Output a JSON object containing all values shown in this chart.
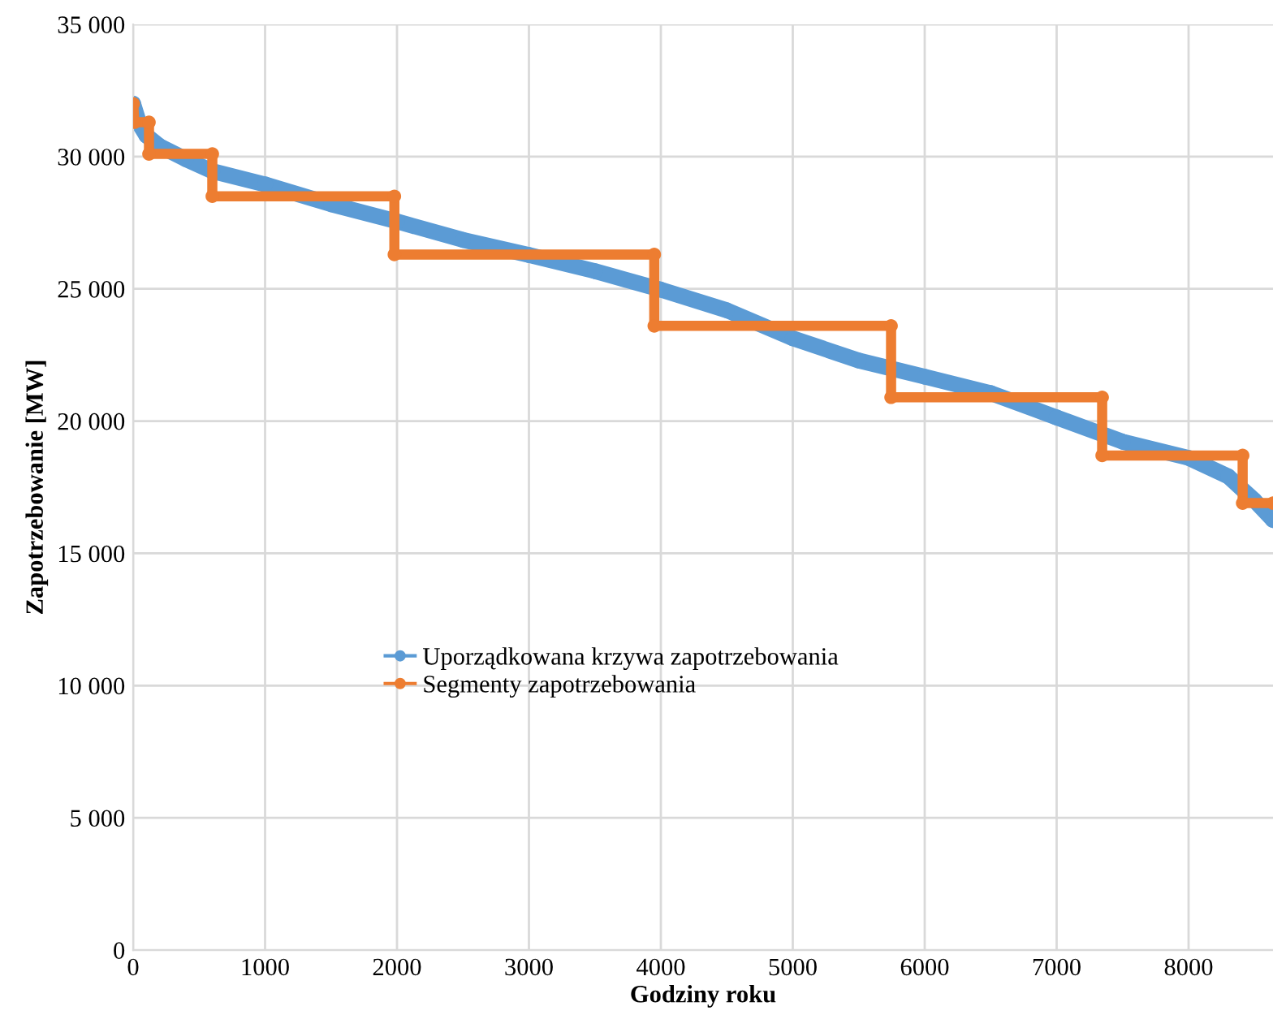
{
  "chart_data": {
    "type": "line",
    "xlabel": "Godziny roku",
    "ylabel": "Zapotrzebowanie [MW]",
    "xlim": [
      0,
      8640
    ],
    "xticks": [
      0,
      1000,
      2000,
      3000,
      4000,
      5000,
      6000,
      7000,
      8000
    ],
    "ylim": [
      0,
      35000
    ],
    "yticks": [
      {
        "value": 0,
        "label": "0"
      },
      {
        "value": 5000,
        "label": "5 000"
      },
      {
        "value": 10000,
        "label": "10 000"
      },
      {
        "value": 15000,
        "label": "15 000"
      },
      {
        "value": 20000,
        "label": "20 000"
      },
      {
        "value": 25000,
        "label": "25 000"
      },
      {
        "value": 30000,
        "label": "30 000"
      },
      {
        "value": 35000,
        "label": "35 000"
      }
    ],
    "grid": true,
    "legend": "center",
    "marker": "circle",
    "series": [
      {
        "name": "Uporządkowana krzywa zapotrzebowania",
        "color": "#5b9bd5",
        "x": [
          0,
          50,
          100,
          200,
          400,
          600,
          1000,
          1500,
          2000,
          2500,
          3000,
          3500,
          4000,
          4500,
          5000,
          5500,
          6000,
          6500,
          7000,
          7500,
          8000,
          8300,
          8500,
          8640
        ],
        "values": [
          32000,
          31200,
          30800,
          30400,
          29900,
          29450,
          28950,
          28200,
          27550,
          26850,
          26280,
          25670,
          24970,
          24190,
          23130,
          22290,
          21680,
          21060,
          20140,
          19220,
          18610,
          17910,
          17000,
          16260
        ]
      },
      {
        "name": "Segmenty zapotrzebowania",
        "color": "#ed7d31",
        "x": [
          0,
          10,
          120,
          120,
          600,
          600,
          1980,
          1980,
          3950,
          3950,
          5745,
          5745,
          7345,
          7345,
          8410,
          8410,
          8640
        ],
        "values": [
          32000,
          31300,
          31300,
          30100,
          30100,
          28500,
          28500,
          26300,
          26300,
          23600,
          23600,
          20900,
          20900,
          18700,
          18700,
          16900,
          16900
        ]
      }
    ]
  }
}
